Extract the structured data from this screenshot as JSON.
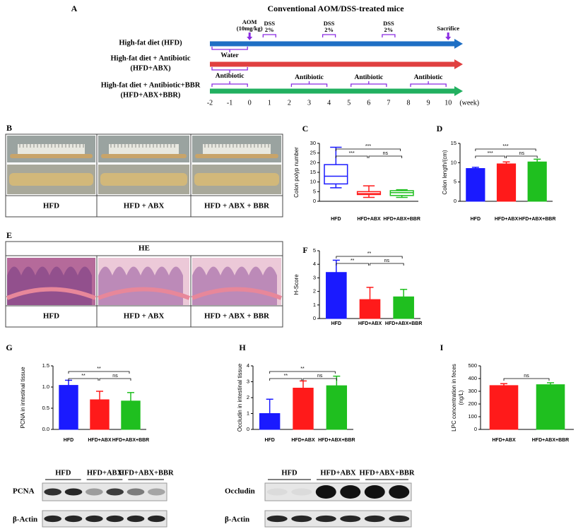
{
  "timeline": {
    "letter": "A",
    "title": "Conventional AOM/DSS-treated mice",
    "weeks": [
      -2,
      -1,
      0,
      1,
      2,
      3,
      4,
      5,
      6,
      7,
      8,
      9,
      10
    ],
    "unit": "(week)",
    "injections": [
      {
        "label": [
          "AOM",
          "(10mg/kg)"
        ],
        "week": 0
      },
      {
        "label": [
          "Sacrifice"
        ],
        "week": 10
      }
    ],
    "treatments": [
      {
        "label": [
          "DSS",
          "2%"
        ],
        "week": 1
      },
      {
        "label": [
          "DSS",
          "2%"
        ],
        "week": 4
      },
      {
        "label": [
          "DSS",
          "2%"
        ],
        "week": 7
      }
    ],
    "groups": [
      {
        "label": [
          "High-fat diet (HFD)"
        ],
        "color": "#1f6fc4",
        "brackets": [
          {
            "label": "Water",
            "from": -2,
            "to": 0
          }
        ]
      },
      {
        "label": [
          "High-fat diet + Antibiotic",
          "(HFD+ABX)"
        ],
        "color": "#e04040",
        "brackets": [
          {
            "label": "Antibiotic",
            "from": -2,
            "to": 0
          }
        ]
      },
      {
        "label": [
          "High-fat diet + Antibiotic+BBR",
          "(HFD+ABX+BBR)"
        ],
        "color": "#22b060",
        "brackets": [
          {
            "from": -2,
            "to": 0
          },
          {
            "label": "Antibiotic",
            "from": 2,
            "to": 4
          },
          {
            "label": "Antibiotic",
            "from": 5,
            "to": 7
          },
          {
            "label": "Antibiotic",
            "from": 8,
            "to": 10
          }
        ]
      }
    ]
  },
  "photos": [
    {
      "letter": "B",
      "labels": [
        "HFD",
        "HFD + ABX",
        "HFD + ABX + BBR"
      ]
    },
    {
      "letter": "E",
      "stain": "HE",
      "labels": [
        "HFD",
        "HFD + ABX",
        "HFD + ABX + BBR"
      ]
    }
  ],
  "chart_data": [
    {
      "type": "box",
      "letter": "C",
      "ylabel": [
        "Colon polyp number"
      ],
      "categories": [
        "HFD",
        "HFD+ABX",
        "HFD+ABX+BBR"
      ],
      "colors": [
        "#1a1aff",
        "#ff1a1a",
        "#1fbf1f"
      ],
      "min": [
        7,
        2,
        2
      ],
      "q1": [
        9,
        3.5,
        3
      ],
      "median": [
        13,
        4,
        4.5
      ],
      "q3": [
        19,
        5,
        5.5
      ],
      "max": [
        28,
        8,
        6
      ],
      "ylim": [
        0,
        30
      ],
      "yticks": [
        0,
        5,
        10,
        15,
        20,
        25,
        30
      ],
      "comparisons": [
        {
          "pair": [
            "HFD",
            "HFD+ABX+BBR"
          ],
          "label": "***"
        },
        {
          "pair": [
            "HFD",
            "HFD+ABX"
          ],
          "label": "***"
        },
        {
          "pair": [
            "HFD+ABX",
            "HFD+ABX+BBR"
          ],
          "label": "ns"
        }
      ]
    },
    {
      "type": "bar",
      "letter": "D",
      "ylabel": [
        "Colon length/(cm)"
      ],
      "categories": [
        "HFD",
        "HFD+ABX",
        "HFD+ABX+BBR"
      ],
      "colors": [
        "#1a1aff",
        "#ff1a1a",
        "#1fbf1f"
      ],
      "values": [
        8.5,
        9.7,
        10.2
      ],
      "errors": [
        0.3,
        0.5,
        0.7
      ],
      "ylim": [
        0,
        15
      ],
      "yticks": [
        0,
        5,
        10,
        15
      ],
      "comparisons": [
        {
          "pair": [
            "HFD",
            "HFD+ABX+BBR"
          ],
          "label": "***"
        },
        {
          "pair": [
            "HFD",
            "HFD+ABX"
          ],
          "label": "***"
        },
        {
          "pair": [
            "HFD+ABX",
            "HFD+ABX+BBR"
          ],
          "label": "ns"
        }
      ]
    },
    {
      "type": "bar",
      "letter": "F",
      "ylabel": [
        "H-Score"
      ],
      "categories": [
        "HFD",
        "HFD+ABX",
        "HFD+ABX+BBR"
      ],
      "colors": [
        "#1a1aff",
        "#ff1a1a",
        "#1fbf1f"
      ],
      "values": [
        3.4,
        1.4,
        1.6
      ],
      "errors": [
        0.9,
        0.9,
        0.55
      ],
      "ylim": [
        0,
        5
      ],
      "yticks": [
        0,
        1,
        2,
        3,
        4,
        5
      ],
      "comparisons": [
        {
          "pair": [
            "HFD",
            "HFD+ABX+BBR"
          ],
          "label": "**"
        },
        {
          "pair": [
            "HFD",
            "HFD+ABX"
          ],
          "label": "**"
        },
        {
          "pair": [
            "HFD+ABX",
            "HFD+ABX+BBR"
          ],
          "label": "ns"
        }
      ]
    },
    {
      "type": "bar",
      "letter": "G",
      "ylabel": [
        "PCNA in intestinal tissue"
      ],
      "categories": [
        "HFD",
        "HFD+ABX",
        "HFD+ABX+BBR"
      ],
      "colors": [
        "#1a1aff",
        "#ff1a1a",
        "#1fbf1f"
      ],
      "values": [
        1.04,
        0.7,
        0.67
      ],
      "errors": [
        0.12,
        0.2,
        0.2
      ],
      "ylim": [
        0,
        1.5
      ],
      "yticks": [
        {
          "value": 0,
          "label": "0.0"
        },
        0.5,
        {
          "value": 1,
          "label": "1.0"
        },
        1.5
      ],
      "comparisons": [
        {
          "pair": [
            "HFD",
            "HFD+ABX+BBR"
          ],
          "label": "**"
        },
        {
          "pair": [
            "HFD",
            "HFD+ABX"
          ],
          "label": "**"
        },
        {
          "pair": [
            "HFD+ABX",
            "HFD+ABX+BBR"
          ],
          "label": "ns"
        }
      ]
    },
    {
      "type": "bar",
      "letter": "H",
      "ylabel": [
        "Occludin in intestinal tissue"
      ],
      "categories": [
        "HFD",
        "HFD+ABX",
        "HFD+ABX+BBR"
      ],
      "colors": [
        "#1a1aff",
        "#ff1a1a",
        "#1fbf1f"
      ],
      "values": [
        1.0,
        2.6,
        2.75
      ],
      "errors": [
        0.9,
        0.45,
        0.6
      ],
      "ylim": [
        0,
        4
      ],
      "yticks": [
        0,
        1,
        2,
        3,
        4
      ],
      "comparisons": [
        {
          "pair": [
            "HFD",
            "HFD+ABX+BBR"
          ],
          "label": "**"
        },
        {
          "pair": [
            "HFD",
            "HFD+ABX"
          ],
          "label": "**"
        },
        {
          "pair": [
            "HFD+ABX",
            "HFD+ABX+BBR"
          ],
          "label": "ns"
        }
      ]
    },
    {
      "type": "bar",
      "letter": "I",
      "ylabel": [
        "LPC concentration in feces",
        "(ng/L)"
      ],
      "categories": [
        "HFD+ABX",
        "HFD+ABX+BBR"
      ],
      "colors": [
        "#ff1a1a",
        "#1fbf1f"
      ],
      "values": [
        345,
        352
      ],
      "errors": [
        15,
        15
      ],
      "ylim": [
        0,
        500
      ],
      "yticks": [
        0,
        100,
        200,
        300,
        400,
        500
      ],
      "comparisons": [
        {
          "pair": [
            "HFD+ABX",
            "HFD+ABX+BBR"
          ],
          "label": "ns"
        }
      ]
    }
  ],
  "blots": [
    {
      "target": "PCNA",
      "control": "β-Actin",
      "groups": [
        "HFD",
        "HFD+ABX",
        "HFD+ABX+BBR"
      ]
    },
    {
      "target": "Occludin",
      "control": "β-Actin",
      "groups": [
        "HFD",
        "HFD+ABX",
        "HFD+ABX+BBR"
      ]
    }
  ]
}
